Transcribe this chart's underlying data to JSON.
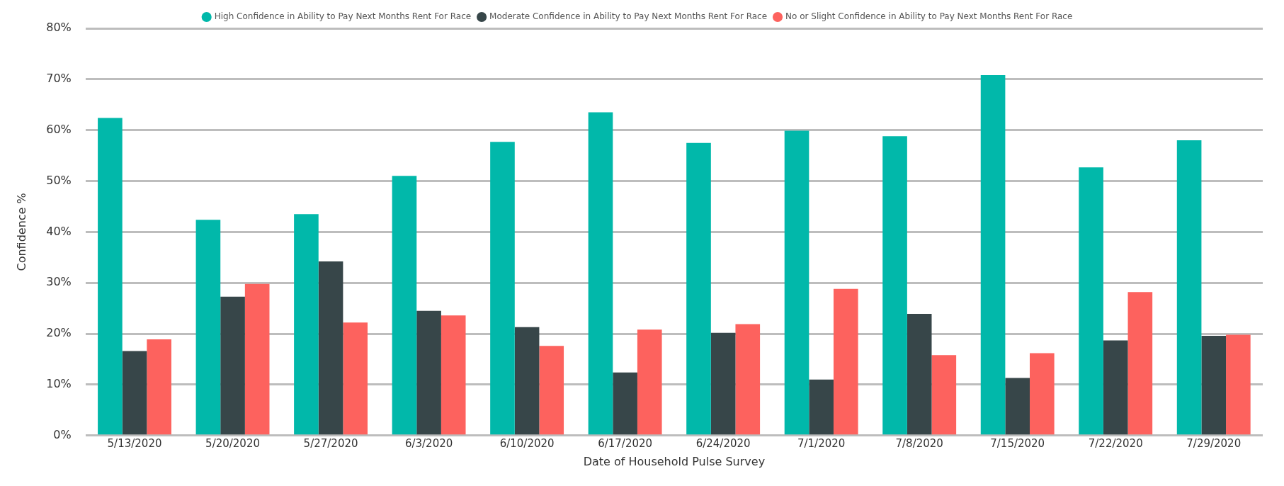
{
  "chart_data": {
    "type": "bar",
    "xlabel": "Date of Household Pulse Survey",
    "ylabel": "Confidence %",
    "categories": [
      "5/13/2020",
      "5/20/2020",
      "5/27/2020",
      "6/3/2020",
      "6/10/2020",
      "6/17/2020",
      "6/24/2020",
      "7/1/2020",
      "7/8/2020",
      "7/15/2020",
      "7/22/2020",
      "7/29/2020"
    ],
    "series": [
      {
        "name": "High Confidence in Ability to Pay Next Months Rent For Race",
        "color": "#01b8aa",
        "values": [
          62.4,
          42.4,
          43.5,
          51.0,
          57.7,
          63.5,
          57.5,
          59.9,
          58.8,
          70.8,
          52.7,
          58.0
        ]
      },
      {
        "name": "Moderate Confidence in Ability to Pay Next Months Rent For Race",
        "color": "#374649",
        "values": [
          16.6,
          27.3,
          34.2,
          24.5,
          21.3,
          12.4,
          20.2,
          11.0,
          23.9,
          11.3,
          18.7,
          19.6
        ]
      },
      {
        "name": "No or Slight Confidence in Ability to Pay Next Months Rent For Race",
        "color": "#fd625e",
        "values": [
          18.9,
          29.8,
          22.2,
          23.6,
          17.6,
          20.8,
          21.9,
          28.8,
          15.8,
          16.2,
          28.2,
          19.8
        ]
      }
    ],
    "ylim": [
      0,
      80
    ],
    "yticks": [
      {
        "value": 0,
        "label": "0%"
      },
      {
        "value": 10,
        "label": "10%"
      },
      {
        "value": 20,
        "label": "20%"
      },
      {
        "value": 30,
        "label": "30%"
      },
      {
        "value": 40,
        "label": "40%"
      },
      {
        "value": 50,
        "label": "50%"
      },
      {
        "value": 60,
        "label": "60%"
      },
      {
        "value": 70,
        "label": "70%"
      },
      {
        "value": 80,
        "label": "80%"
      }
    ],
    "grid": "y",
    "legend": "top"
  }
}
